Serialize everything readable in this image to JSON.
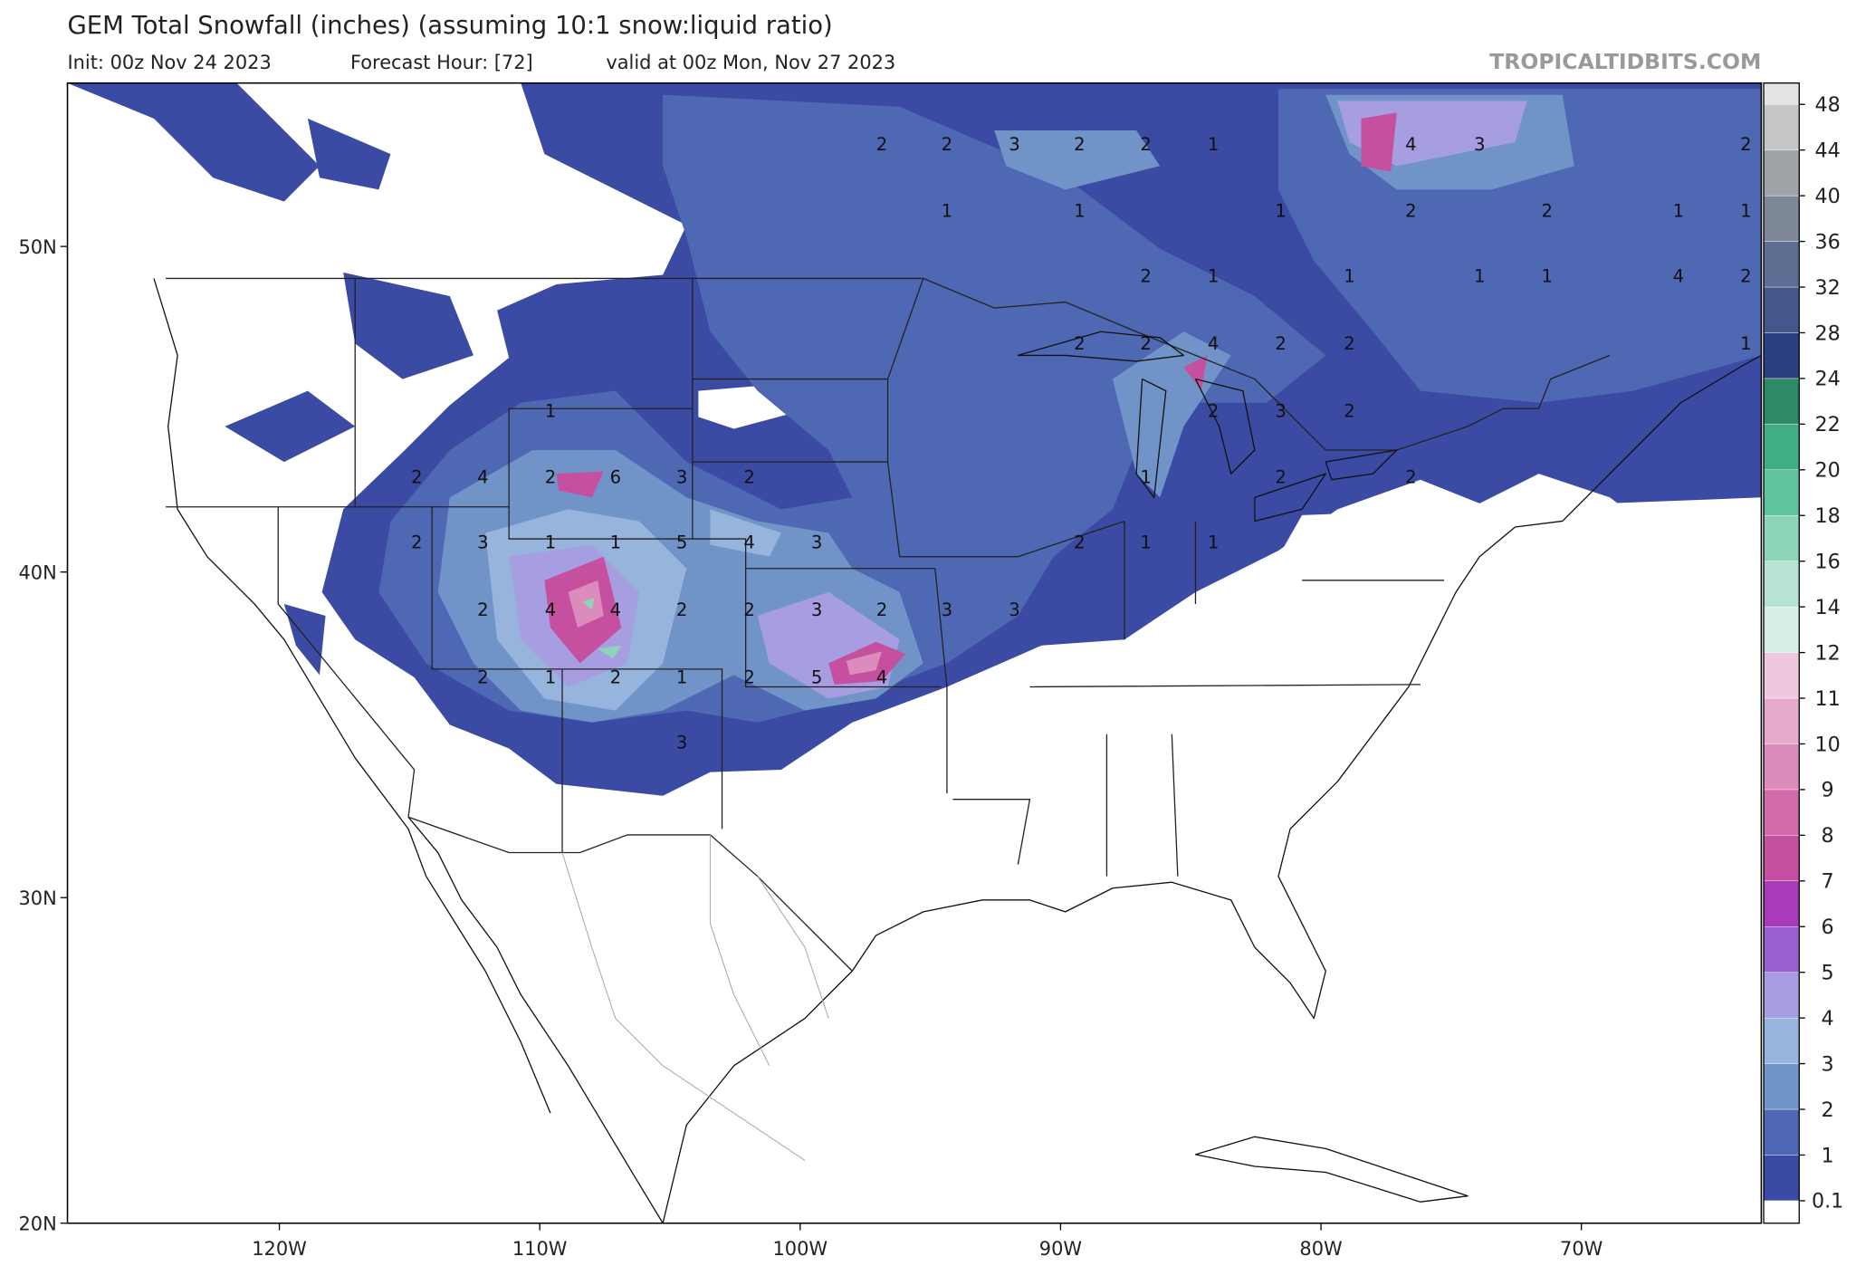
{
  "header": {
    "title": "GEM Total Snowfall (inches) (assuming 10:1 snow:liquid ratio)",
    "init": "Init: 00z Nov 24 2023",
    "forecast_hour": "Forecast Hour: [72]",
    "valid": "valid at 00z Mon, Nov 27 2023",
    "watermark": "TROPICALTIDBITS.COM"
  },
  "map": {
    "lat_ticks": [
      {
        "value": 50,
        "label": "50N"
      },
      {
        "value": 40,
        "label": "40N"
      },
      {
        "value": 30,
        "label": "30N"
      },
      {
        "value": 20,
        "label": "20N"
      }
    ],
    "lon_ticks": [
      {
        "value": -120,
        "label": "120W"
      },
      {
        "value": -110,
        "label": "110W"
      },
      {
        "value": -100,
        "label": "100W"
      },
      {
        "value": -90,
        "label": "90W"
      },
      {
        "value": -80,
        "label": "80W"
      },
      {
        "value": -70,
        "label": "70W"
      }
    ],
    "contour_labels": [
      "2",
      "2",
      "3",
      "2",
      "2",
      "1",
      "4",
      "3",
      "2",
      "1",
      "1",
      "1",
      "2",
      "2",
      "1",
      "1",
      "2",
      "1",
      "1",
      "1",
      "1",
      "4",
      "2",
      "2",
      "2",
      "4",
      "2",
      "2",
      "1",
      "1",
      "2",
      "3",
      "2",
      "2",
      "4",
      "2",
      "6",
      "3",
      "2",
      "1",
      "2",
      "2",
      "2",
      "3",
      "1",
      "1",
      "5",
      "4",
      "3",
      "2",
      "1",
      "1",
      "2",
      "4",
      "4",
      "2",
      "2",
      "3",
      "2",
      "3",
      "3",
      "2",
      "1",
      "2",
      "1",
      "2",
      "5",
      "4",
      "3"
    ]
  },
  "colorbar": {
    "ticks": [
      0.1,
      1,
      2,
      3,
      4,
      5,
      6,
      7,
      8,
      9,
      10,
      11,
      12,
      14,
      16,
      18,
      20,
      22,
      24,
      28,
      32,
      36,
      40,
      44,
      48
    ],
    "colors": [
      "#3b4ba3",
      "#4f68b4",
      "#7194c8",
      "#96b4dc",
      "#a79ee2",
      "#9b5fd3",
      "#a83bbb",
      "#c5509f",
      "#d46aaa",
      "#dc8bbd",
      "#e6aacd",
      "#efc8df",
      "#d8efe6",
      "#b6e3d2",
      "#8dd4b8",
      "#5fc39c",
      "#3fae84",
      "#2e8a66",
      "#2c3f7e",
      "#44568a",
      "#5e6e92",
      "#7e8898",
      "#a0a4a8",
      "#c4c6c8",
      "#e4e4e4"
    ]
  }
}
